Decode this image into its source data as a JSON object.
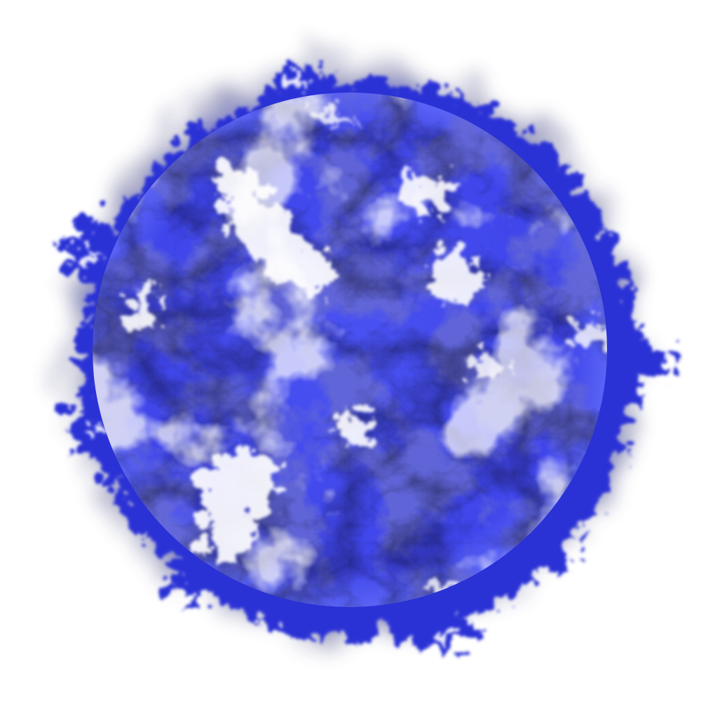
{
  "image": {
    "subject": "glowing-blue-star",
    "background_color": "#ffffff",
    "palette": {
      "core_base": "#3f45ea",
      "core_dark": "#2326b8",
      "core_mid": "#5a63f5",
      "highlight": "#ffffff",
      "corona_blue": "#2a2fd0",
      "corona_smoke": "#7a7c9a"
    }
  }
}
